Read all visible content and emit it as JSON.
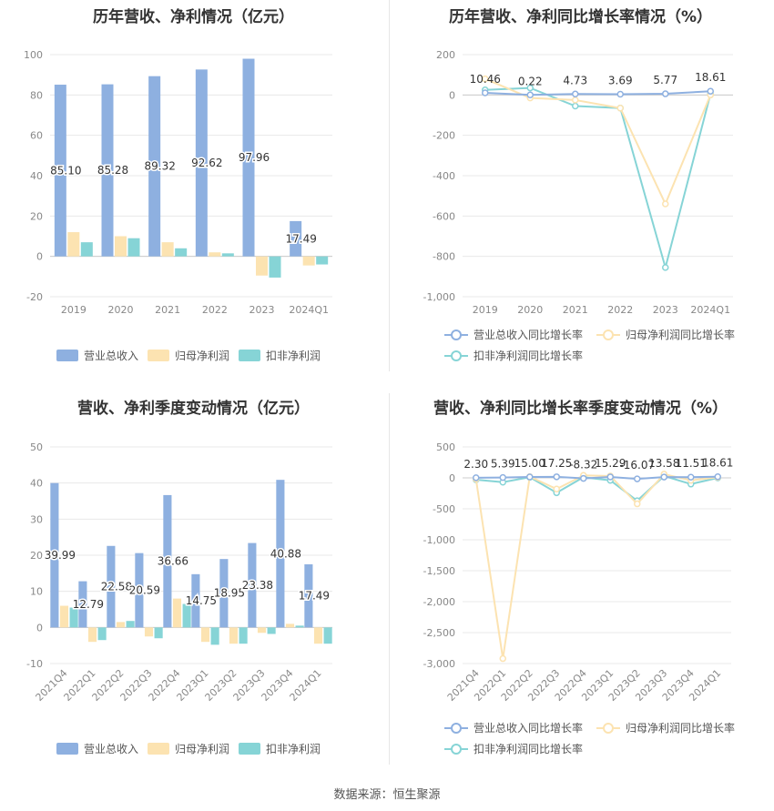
{
  "colors": {
    "revenue": "#8eb0e0",
    "net_profit": "#fce3b1",
    "deducted_profit": "#86d4d6",
    "grid": "#e8e8e8",
    "axis_text": "#888888",
    "title_text": "#333333"
  },
  "source_text": "数据来源：恒生聚源",
  "chart_data": [
    {
      "id": "annual_values",
      "type": "bar",
      "title": "历年营收、净利情况（亿元）",
      "categories": [
        "2019",
        "2020",
        "2021",
        "2022",
        "2023",
        "2024Q1"
      ],
      "ylim": [
        -20,
        100
      ],
      "yticks": [
        -20,
        0,
        20,
        40,
        60,
        80,
        100
      ],
      "grid": true,
      "legend_position": "bottom",
      "series": [
        {
          "name": "营业总收入",
          "values": [
            85.1,
            85.28,
            89.32,
            92.62,
            97.96,
            17.49
          ]
        },
        {
          "name": "归母净利润",
          "values": [
            12.0,
            10.0,
            7.0,
            2.0,
            -9.5,
            -4.5
          ]
        },
        {
          "name": "扣非净利润",
          "values": [
            7.0,
            9.0,
            4.0,
            1.5,
            -10.5,
            -4.0
          ]
        }
      ],
      "data_labels": [
        "85.10",
        "85.28",
        "89.32",
        "92.62",
        "97.96",
        "17.49"
      ]
    },
    {
      "id": "annual_growth",
      "type": "line",
      "title": "历年营收、净利同比增长率情况（%）",
      "categories": [
        "2019",
        "2020",
        "2021",
        "2022",
        "2023",
        "2024Q1"
      ],
      "ylim": [
        -1000,
        200
      ],
      "yticks": [
        -1000,
        -800,
        -600,
        -400,
        -200,
        0,
        200
      ],
      "ytick_labels": [
        "-1,000",
        "-800",
        "-600",
        "-400",
        "-200",
        "0",
        "200"
      ],
      "grid": true,
      "legend_position": "bottom",
      "series": [
        {
          "name": "营业总收入同比增长率",
          "values": [
            10.46,
            0.22,
            4.73,
            3.69,
            5.77,
            18.61
          ]
        },
        {
          "name": "归母净利润同比增长率",
          "values": [
            80,
            -15,
            -25,
            -65,
            -540,
            0
          ]
        },
        {
          "name": "扣非净利润同比增长率",
          "values": [
            25,
            35,
            -55,
            -65,
            -855,
            5
          ]
        }
      ],
      "data_labels": [
        "10.46",
        "0.22",
        "4.73",
        "3.69",
        "5.77",
        "18.61"
      ]
    },
    {
      "id": "quarterly_values",
      "type": "bar",
      "title": "营收、净利季度变动情况（亿元）",
      "categories": [
        "2021Q4",
        "2022Q1",
        "2022Q2",
        "2022Q3",
        "2022Q4",
        "2023Q1",
        "2023Q2",
        "2023Q3",
        "2023Q4",
        "2024Q1"
      ],
      "ylim": [
        -10,
        50
      ],
      "yticks": [
        -10,
        0,
        10,
        20,
        30,
        40,
        50
      ],
      "grid": true,
      "legend_position": "bottom",
      "series": [
        {
          "name": "营业总收入",
          "values": [
            39.99,
            12.79,
            22.58,
            20.59,
            36.66,
            14.75,
            18.95,
            23.38,
            40.88,
            17.49
          ]
        },
        {
          "name": "归母净利润",
          "values": [
            6.0,
            -4.0,
            1.5,
            -2.5,
            8.0,
            -4.0,
            -4.5,
            -1.5,
            1.0,
            -4.5
          ]
        },
        {
          "name": "扣非净利润",
          "values": [
            5.5,
            -3.5,
            1.8,
            -3.0,
            6.5,
            -4.8,
            -4.5,
            -1.8,
            0.5,
            -4.5
          ]
        }
      ],
      "data_labels": [
        "39.99",
        "12.79",
        "22.58",
        "20.59",
        "36.66",
        "14.75",
        "18.95",
        "23.38",
        "40.88",
        "17.49"
      ]
    },
    {
      "id": "quarterly_growth",
      "type": "line",
      "title": "营收、净利同比增长率季度变动情况（%）",
      "categories": [
        "2021Q4",
        "2022Q1",
        "2022Q2",
        "2022Q3",
        "2022Q4",
        "2023Q1",
        "2023Q2",
        "2023Q3",
        "2023Q4",
        "2024Q1"
      ],
      "ylim": [
        -3000,
        500
      ],
      "yticks": [
        -3000,
        -2500,
        -2000,
        -1500,
        -1000,
        -500,
        0,
        500
      ],
      "ytick_labels": [
        "-3,000",
        "-2,500",
        "-2,000",
        "-1,500",
        "-1,000",
        "-500",
        "0",
        "500"
      ],
      "grid": true,
      "legend_position": "bottom",
      "series": [
        {
          "name": "营业总收入同比增长率",
          "values": [
            2.3,
            5.39,
            15.0,
            17.25,
            -8.32,
            15.29,
            -16.07,
            13.58,
            11.51,
            18.61
          ]
        },
        {
          "name": "归母净利润同比增长率",
          "values": [
            -20,
            -2920,
            20,
            -180,
            40,
            30,
            -420,
            60,
            -40,
            10
          ]
        },
        {
          "name": "扣非净利润同比增长率",
          "values": [
            -30,
            -70,
            10,
            -240,
            10,
            -40,
            -370,
            30,
            -100,
            0
          ]
        }
      ],
      "data_labels": [
        "2.30",
        "5.39",
        "15.00",
        "17.25",
        "-8.32",
        "15.29",
        "-16.07",
        "13.58",
        "11.51",
        "18.61"
      ]
    }
  ]
}
